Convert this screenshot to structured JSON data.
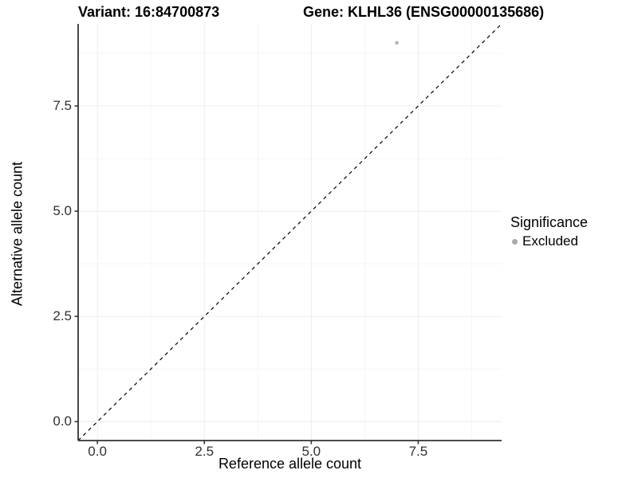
{
  "header": {
    "variant_title": "Variant: 16:84700873",
    "gene_title": "Gene: KLHL36 (ENSG00000135686)"
  },
  "chart_data": {
    "type": "scatter",
    "title": "Variant: 16:84700873   Gene: KLHL36 (ENSG00000135686)",
    "xlabel": "Reference allele count",
    "ylabel": "Alternative allele count",
    "xlim": [
      -0.45,
      9.45
    ],
    "ylim": [
      -0.45,
      9.45
    ],
    "x_ticks": [
      0.0,
      2.5,
      5.0,
      7.5
    ],
    "y_ticks": [
      0.0,
      2.5,
      5.0,
      7.5
    ],
    "x_tick_labels": [
      "0.0",
      "2.5",
      "5.0",
      "7.5"
    ],
    "y_tick_labels": [
      "0.0",
      "2.5",
      "5.0",
      "7.5"
    ],
    "x_minor_ticks": [
      1.25,
      3.75,
      6.25,
      8.75
    ],
    "y_minor_ticks": [
      1.25,
      3.75,
      6.25,
      8.75
    ],
    "grid": "major and minor gridlines, very light gray on white",
    "legend_position": "right",
    "reference_line": {
      "type": "identity",
      "slope": 1,
      "intercept": 0,
      "linestyle": "dashed",
      "color": "#000000"
    },
    "series": [
      {
        "name": "Excluded",
        "marker_color": "#b4b4b4",
        "marker_radius_px": 2.3,
        "points": [
          {
            "x": 7,
            "y": 9
          }
        ]
      }
    ],
    "legend": {
      "title": "Significance",
      "items": [
        {
          "label": "Excluded",
          "color": "#aaaaaa"
        }
      ]
    }
  },
  "colors": {
    "background": "#ffffff",
    "axis_line": "#333333",
    "tick_mark": "#333333",
    "tick_label": "#303030",
    "grid_major": "#ececec",
    "grid_minor": "#f5f5f5",
    "point_gray": "#b4b4b4",
    "reference_line": "#000000"
  }
}
